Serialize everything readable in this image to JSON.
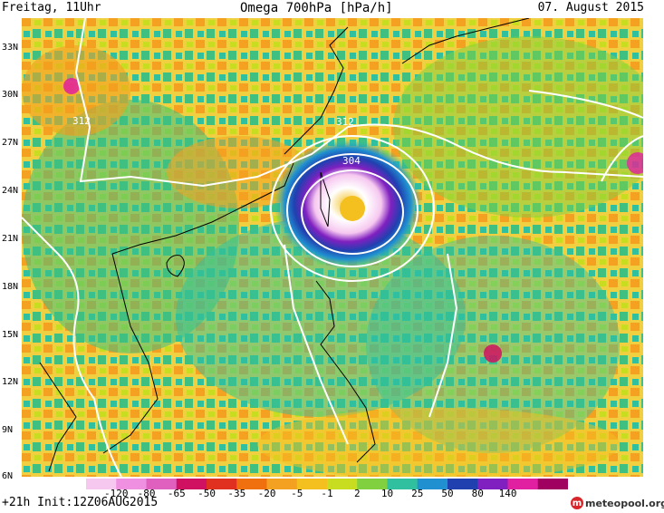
{
  "header": {
    "left": "Freitag, 11Uhr",
    "title": "Omega 700hPa [hPa/h]",
    "date": "07. August 2015"
  },
  "footer": {
    "run_info": "+21h Init:12Z06AUG2015",
    "logo_text": "meteopool.org"
  },
  "lat_labels": [
    "33N",
    "30N",
    "27N",
    "24N",
    "21N",
    "18N",
    "15N",
    "12N",
    "9N",
    "6N"
  ],
  "contour_labels": [
    "312",
    "312",
    "304"
  ],
  "colorbar": {
    "labels": [
      "-120",
      "-80",
      "-65",
      "-50",
      "-35",
      "-20",
      "-5",
      "-1",
      "2",
      "10",
      "25",
      "50",
      "80",
      "140"
    ],
    "colors": [
      "#f6c8f0",
      "#f090e0",
      "#e060c0",
      "#d01060",
      "#e03020",
      "#f07010",
      "#f4a020",
      "#f4c020",
      "#c8dc20",
      "#80d040",
      "#30c0a0",
      "#2090d0",
      "#2040b0",
      "#8020c0",
      "#e020a0",
      "#a00060"
    ]
  }
}
